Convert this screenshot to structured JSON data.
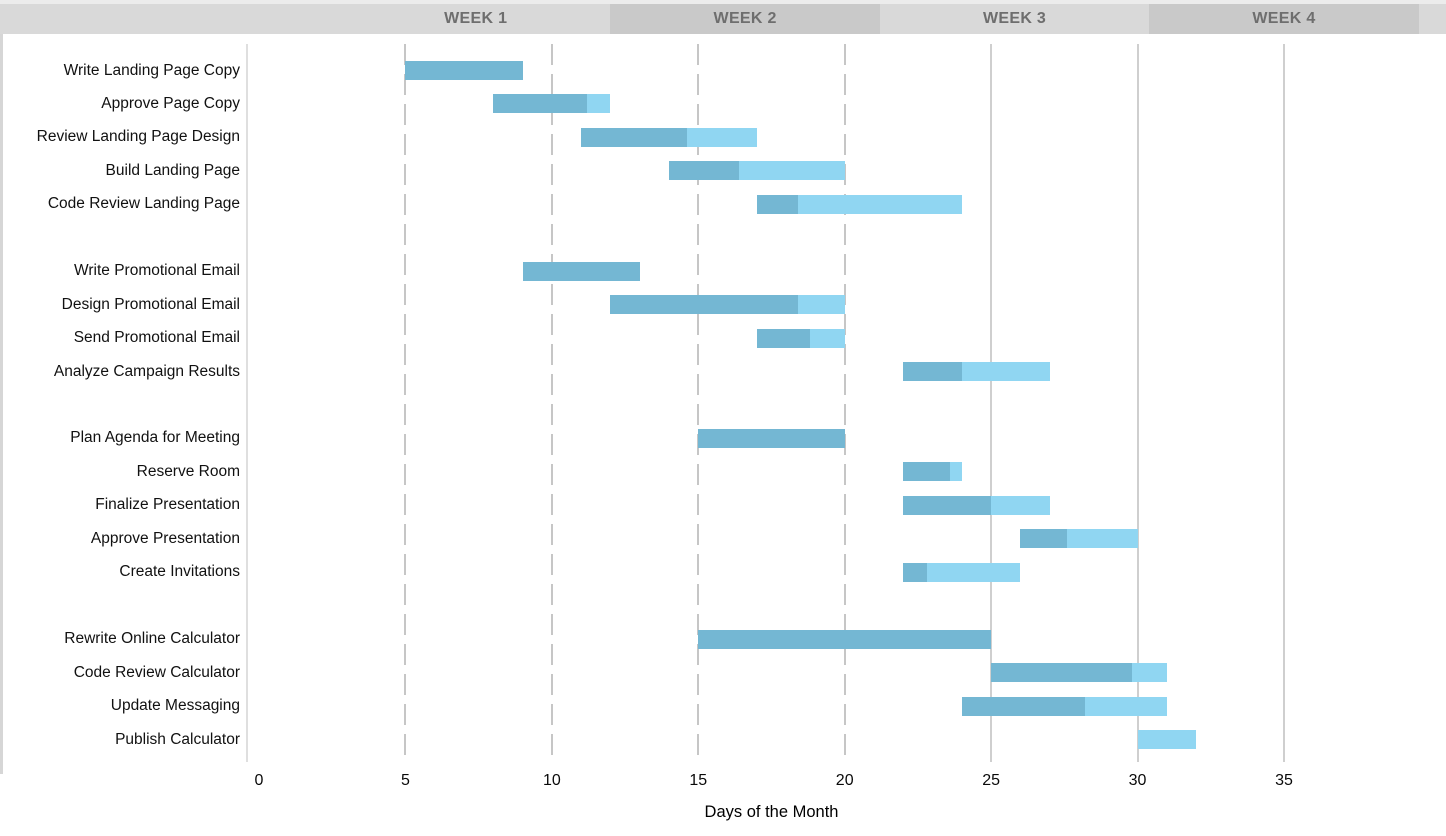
{
  "header": {
    "weeks": [
      {
        "label": "WEEK 1",
        "span_days": [
          2.8,
          12.0
        ],
        "shade": "light"
      },
      {
        "label": "WEEK 2",
        "span_days": [
          12.0,
          21.2
        ],
        "shade": "dark"
      },
      {
        "label": "WEEK 3",
        "span_days": [
          21.2,
          30.4
        ],
        "shade": "light"
      },
      {
        "label": "WEEK 4",
        "span_days": [
          30.4,
          39.6
        ],
        "shade": "dark"
      }
    ],
    "colors": {
      "light": "#d9d9d9",
      "dark": "#c9c9c9"
    }
  },
  "chart_data": {
    "type": "bar",
    "subtype": "gantt",
    "title": "",
    "xlabel": "Days of the Month",
    "ylabel": "",
    "x_ticks": [
      0,
      5,
      10,
      15,
      20,
      25,
      30,
      35
    ],
    "xlim": [
      0,
      40.5
    ],
    "dashed_gridline_days": [
      5,
      10,
      15,
      20
    ],
    "solid_gridline_days": [
      25,
      30,
      35
    ],
    "colors": {
      "complete": "#74b7d3",
      "remaining": "#90d6f2"
    },
    "tasks": [
      {
        "label": "Write Landing Page Copy",
        "row": 0,
        "start": 5,
        "end": 9,
        "percent_complete": 100
      },
      {
        "label": "Approve Page Copy",
        "row": 1,
        "start": 8,
        "end": 12,
        "percent_complete": 80
      },
      {
        "label": "Review Landing Page Design",
        "row": 2,
        "start": 11,
        "end": 17,
        "percent_complete": 60
      },
      {
        "label": "Build Landing Page",
        "row": 3,
        "start": 14,
        "end": 20,
        "percent_complete": 40
      },
      {
        "label": "Code Review Landing Page",
        "row": 4,
        "start": 17,
        "end": 24,
        "percent_complete": 20
      },
      {
        "label": "Write Promotional Email",
        "row": 6,
        "start": 9,
        "end": 13,
        "percent_complete": 100
      },
      {
        "label": "Design Promotional Email",
        "row": 7,
        "start": 12,
        "end": 20,
        "percent_complete": 80
      },
      {
        "label": "Send Promotional Email",
        "row": 8,
        "start": 17,
        "end": 20,
        "percent_complete": 60
      },
      {
        "label": "Analyze Campaign Results",
        "row": 9,
        "start": 22,
        "end": 27,
        "percent_complete": 40
      },
      {
        "label": "Plan Agenda for Meeting",
        "row": 11,
        "start": 15,
        "end": 20,
        "percent_complete": 100
      },
      {
        "label": "Reserve Room",
        "row": 12,
        "start": 22,
        "end": 24,
        "percent_complete": 80
      },
      {
        "label": "Finalize Presentation",
        "row": 13,
        "start": 22,
        "end": 27,
        "percent_complete": 60
      },
      {
        "label": "Approve Presentation",
        "row": 14,
        "start": 26,
        "end": 30,
        "percent_complete": 40
      },
      {
        "label": "Create Invitations",
        "row": 15,
        "start": 22,
        "end": 26,
        "percent_complete": 20
      },
      {
        "label": "Rewrite Online Calculator",
        "row": 17,
        "start": 15,
        "end": 25,
        "percent_complete": 100
      },
      {
        "label": "Code Review Calculator",
        "row": 18,
        "start": 25,
        "end": 31,
        "percent_complete": 80
      },
      {
        "label": "Update Messaging",
        "row": 19,
        "start": 24,
        "end": 31,
        "percent_complete": 60
      },
      {
        "label": "Publish Calculator",
        "row": 20,
        "start": 30,
        "end": 32,
        "percent_complete": 0
      }
    ]
  }
}
